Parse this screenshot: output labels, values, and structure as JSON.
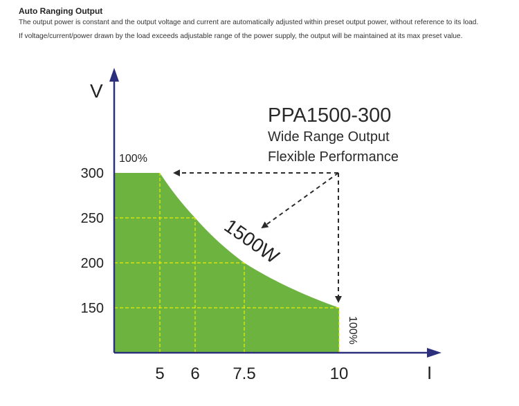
{
  "header": {
    "title": "Auto Ranging Output",
    "line1": "The output power is constant and the output voltage and current are automatically adjusted within preset output power, without reference to its load.",
    "line2": "If voltage/current/power drawn by the load exceeds adjustable range of the power supply, the output will be maintained at its max preset value."
  },
  "chart_data": {
    "type": "area",
    "title": "PPA1500-300",
    "subtitle_lines": [
      "Wide Range Output",
      "Flexible Performance"
    ],
    "xlabel": "I",
    "ylabel": "V",
    "x_ticks": [
      "5",
      "6",
      "7.5",
      "10"
    ],
    "y_ticks": [
      "300",
      "250",
      "200",
      "150"
    ],
    "power_label": "1500W",
    "corner_labels": {
      "top": "100%",
      "right": "100%"
    },
    "series": [
      {
        "x": [
          0,
          5,
          6,
          7.5,
          10
        ],
        "y": [
          300,
          300,
          250,
          200,
          150
        ]
      }
    ],
    "constant_power_W": 1500,
    "fill_color": "#6db33f",
    "axis_color": "#2b2f7c",
    "grid_color": "#e8f000",
    "grid": true
  }
}
